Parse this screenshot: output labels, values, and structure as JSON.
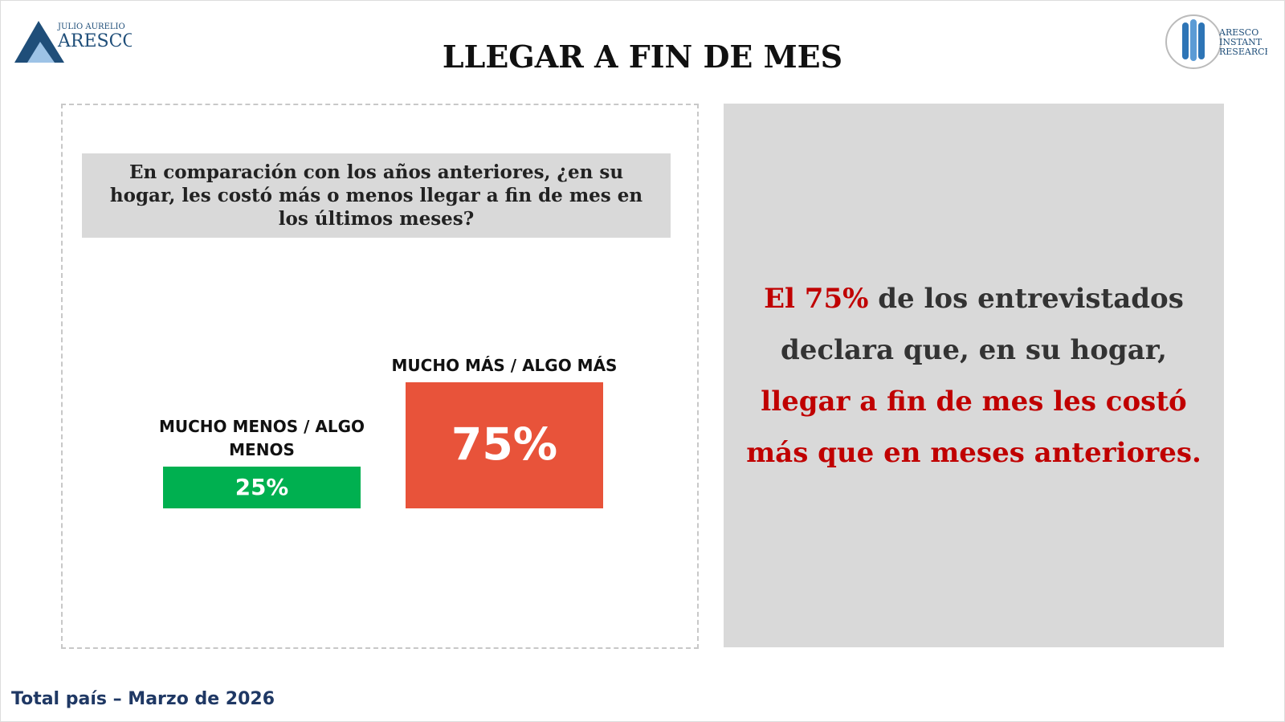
{
  "header": {
    "title": "LLEGAR A FIN DE MES",
    "logo_left_small": "JULIO AURELIO",
    "logo_left": "ARESCO",
    "logo_right": [
      "ARESCO",
      "INSTANT",
      "RESEARCH"
    ]
  },
  "question": "En comparación con los años anteriores, ¿en su hogar, les costó más o menos llegar a fin de mes en los últimos meses?",
  "chart_data": {
    "type": "bar",
    "categories": [
      "MUCHO MENOS / ALGO MENOS",
      "MUCHO MÁS / ALGO MÁS"
    ],
    "values": [
      25,
      75
    ],
    "value_labels": [
      "25%",
      "75%"
    ],
    "colors": [
      "#00b050",
      "#e8533a"
    ]
  },
  "summary": [
    [
      {
        "text": "El 75%",
        "color": "#c00000"
      },
      {
        "text": " de los entrevistados",
        "color": "#333333"
      }
    ],
    [
      {
        "text": "declara que, en su hogar,",
        "color": "#333333"
      }
    ],
    [
      {
        "text": "llegar a fin de mes les costó",
        "color": "#c00000"
      }
    ],
    [
      {
        "text": "más que en meses anteriores.",
        "color": "#c00000"
      }
    ]
  ],
  "footer": "Total país – Marzo de 2026"
}
